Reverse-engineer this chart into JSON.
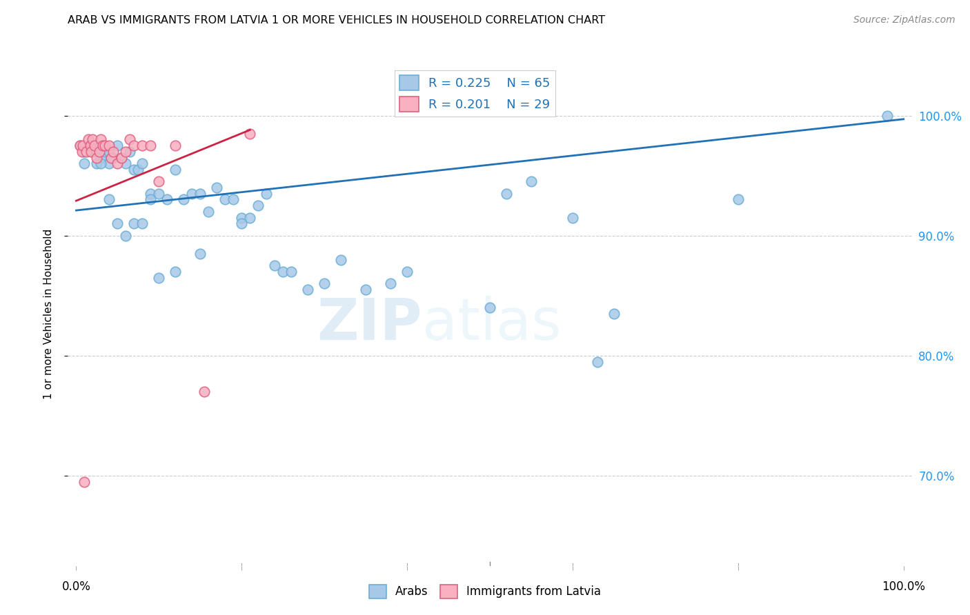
{
  "title": "ARAB VS IMMIGRANTS FROM LATVIA 1 OR MORE VEHICLES IN HOUSEHOLD CORRELATION CHART",
  "source": "Source: ZipAtlas.com",
  "ylabel": "1 or more Vehicles in Household",
  "arab_color_face": "#a8c8e8",
  "arab_color_edge": "#6baed6",
  "latvia_color_face": "#f9b0c0",
  "latvia_color_edge": "#e06080",
  "arab_line_color": "#2171b5",
  "latvia_line_color": "#cc2244",
  "ytick_labels": [
    "70.0%",
    "80.0%",
    "90.0%",
    "100.0%"
  ],
  "ytick_values": [
    0.7,
    0.8,
    0.9,
    1.0
  ],
  "xmin": -0.01,
  "xmax": 1.01,
  "ymin": 0.625,
  "ymax": 1.045,
  "arab_x": [
    0.005,
    0.01,
    0.01,
    0.015,
    0.02,
    0.02,
    0.025,
    0.025,
    0.03,
    0.03,
    0.035,
    0.04,
    0.04,
    0.045,
    0.05,
    0.055,
    0.06,
    0.065,
    0.07,
    0.075,
    0.08,
    0.09,
    0.1,
    0.11,
    0.12,
    0.13,
    0.14,
    0.15,
    0.16,
    0.17,
    0.18,
    0.19,
    0.2,
    0.21,
    0.22,
    0.23,
    0.24,
    0.25,
    0.26,
    0.28,
    0.3,
    0.32,
    0.35,
    0.38,
    0.4,
    0.5,
    0.52,
    0.55,
    0.6,
    0.63,
    0.65,
    0.8,
    0.98,
    0.03,
    0.04,
    0.05,
    0.06,
    0.07,
    0.08,
    0.09,
    0.1,
    0.12,
    0.15,
    0.2
  ],
  "arab_y": [
    0.975,
    0.97,
    0.96,
    0.975,
    0.975,
    0.97,
    0.97,
    0.96,
    0.975,
    0.965,
    0.97,
    0.97,
    0.96,
    0.965,
    0.975,
    0.965,
    0.96,
    0.97,
    0.955,
    0.955,
    0.96,
    0.935,
    0.935,
    0.93,
    0.955,
    0.93,
    0.935,
    0.935,
    0.92,
    0.94,
    0.93,
    0.93,
    0.915,
    0.915,
    0.925,
    0.935,
    0.875,
    0.87,
    0.87,
    0.855,
    0.86,
    0.88,
    0.855,
    0.86,
    0.87,
    0.84,
    0.935,
    0.945,
    0.915,
    0.795,
    0.835,
    0.93,
    1.0,
    0.96,
    0.93,
    0.91,
    0.9,
    0.91,
    0.91,
    0.93,
    0.865,
    0.87,
    0.885,
    0.91
  ],
  "latvia_x": [
    0.005,
    0.007,
    0.008,
    0.01,
    0.012,
    0.015,
    0.017,
    0.018,
    0.02,
    0.022,
    0.025,
    0.028,
    0.03,
    0.032,
    0.035,
    0.04,
    0.042,
    0.045,
    0.05,
    0.055,
    0.06,
    0.065,
    0.07,
    0.08,
    0.09,
    0.1,
    0.12,
    0.155,
    0.21
  ],
  "latvia_y": [
    0.975,
    0.97,
    0.975,
    0.695,
    0.97,
    0.98,
    0.975,
    0.97,
    0.98,
    0.975,
    0.965,
    0.97,
    0.98,
    0.975,
    0.975,
    0.975,
    0.965,
    0.97,
    0.96,
    0.965,
    0.97,
    0.98,
    0.975,
    0.975,
    0.975,
    0.945,
    0.975,
    0.77,
    0.985
  ],
  "arab_line_x": [
    0.0,
    1.0
  ],
  "arab_line_y": [
    0.921,
    0.997
  ],
  "latvia_line_x": [
    0.0,
    0.21
  ],
  "latvia_line_y": [
    0.929,
    0.988
  ]
}
